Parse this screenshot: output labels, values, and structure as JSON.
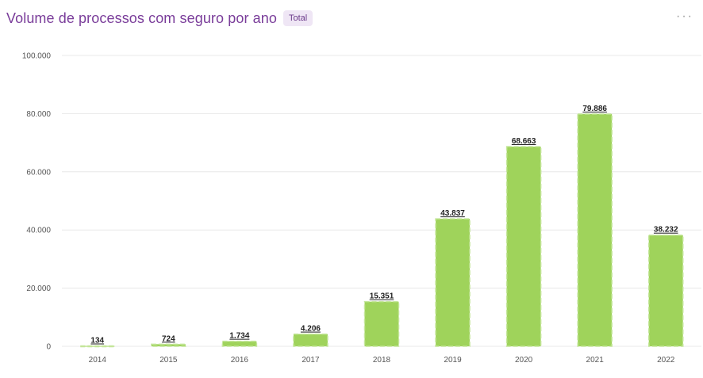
{
  "header": {
    "title": "Volume de processos com seguro por ano",
    "badge": "Total",
    "menu_glyph": "···"
  },
  "colors": {
    "bar": "#9fd35b",
    "bar_stroke": "#c4e69a",
    "title": "#7a3d9a",
    "grid": "#e8e8e8"
  },
  "chart_data": {
    "type": "bar",
    "categories": [
      "2014",
      "2015",
      "2016",
      "2017",
      "2018",
      "2019",
      "2020",
      "2021",
      "2022"
    ],
    "values": [
      134,
      724,
      1734,
      4206,
      15351,
      43837,
      68663,
      79886,
      38232
    ],
    "value_labels": [
      "134",
      "724",
      "1.734",
      "4.206",
      "15.351",
      "43.837",
      "68.663",
      "79.886",
      "38.232"
    ],
    "ylim": [
      0,
      100000
    ],
    "yticks": [
      0,
      20000,
      40000,
      60000,
      80000,
      100000
    ],
    "ytick_labels": [
      "0",
      "20.000",
      "40.000",
      "60.000",
      "80.000",
      "100.000"
    ],
    "grid": true,
    "legend": "none"
  }
}
